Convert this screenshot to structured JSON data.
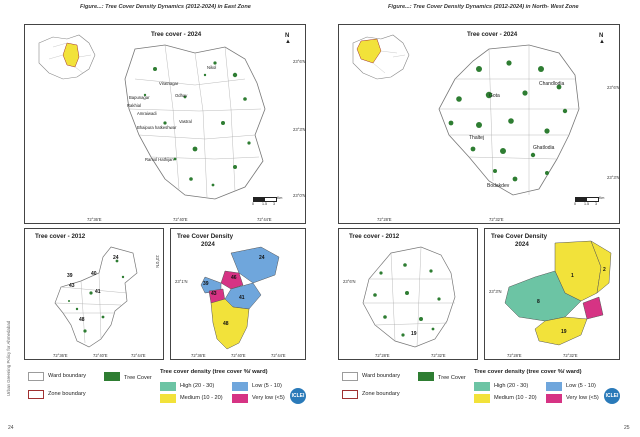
{
  "left_page": {
    "figure_title": "Figure...: Tree Cover Density Dynamics (2012-2024) in East Zone",
    "main_map_title": "Tree cover - 2024",
    "main_map_lat": [
      "23°6'N",
      "23°3'N",
      "23°0'N"
    ],
    "main_map_lon": [
      "72°36'E",
      "72°40'E",
      "72°44'E"
    ],
    "ward_labels": [
      "Nikol",
      "Viratnagar",
      "Odhav",
      "Bapunagar",
      "Rakhial",
      "Amraiwadi",
      "Vastral",
      "Bhaipura hatkeshwar",
      "Ramol Hathijan"
    ],
    "scale_label": "Km",
    "scale_ticks": [
      "0",
      "1.5",
      "3"
    ],
    "map2012_title": "Tree cover - 2012",
    "density_title": "Tree Cover Density\n2024",
    "density_title_l1": "Tree Cover Density",
    "density_title_l2": "2024",
    "small_lat": [
      "23°0'N",
      "23°1'N"
    ],
    "small_lon": [
      "72°36'E",
      "72°40'E",
      "72°44'E"
    ],
    "ward_numbers_2012": [
      "24",
      "40",
      "39",
      "43",
      "41",
      "48"
    ],
    "ward_numbers_density": [
      "24",
      "46",
      "39",
      "43",
      "41",
      "48"
    ],
    "side_text": "Urban Greening Policy for Ahmedabad",
    "page_number": "24"
  },
  "right_page": {
    "figure_title": "Figure...: Tree Cover Density Dynamics (2012-2024) in North- West Zone",
    "main_map_title": "Tree cover - 2024",
    "main_map_lat": [
      "23°6'N",
      "23°3'N"
    ],
    "main_map_lon": [
      "72°28'E",
      "72°32'E"
    ],
    "ward_labels": [
      "Chandlodia",
      "Gota",
      "Thaltej",
      "Ghatlodia",
      "Bodakdev"
    ],
    "scale_label": "Km",
    "scale_ticks": [
      "0",
      "1.5",
      "3"
    ],
    "map2012_title": "Tree cover - 2012",
    "density_title": "Tree Cover Density\n2024",
    "density_title_l1": "Tree Cover Density",
    "density_title_l2": "2024",
    "small_lat": [
      "23°6'N",
      "23°3'N"
    ],
    "small_lon": [
      "72°28'E",
      "72°32'E"
    ],
    "ward_numbers_2012": [
      "19"
    ],
    "ward_numbers_density": [
      "1",
      "2",
      "8",
      "19"
    ],
    "page_number": "25"
  },
  "legend": {
    "ward_boundary": "Ward boundary",
    "zone_boundary": "Zone boundary",
    "tree_cover": "Tree Cover",
    "density_heading": "Tree cover density (tree cover %/ ward)",
    "high": "High (20 - 30)",
    "medium": "Medium (10 - 20)",
    "low": "Low (5 - 10)",
    "very_low": "Very low (<5)",
    "logo_text": "ICLEI"
  },
  "colors": {
    "tree_cover": "#2e7d32",
    "high": "#6cc4a4",
    "medium": "#f2e23a",
    "low": "#6fa6dc",
    "very_low": "#d63384",
    "ward_boundary": "#9c9c9c",
    "zone_boundary": "#a03030",
    "locator_fill": "#f2e23a"
  }
}
